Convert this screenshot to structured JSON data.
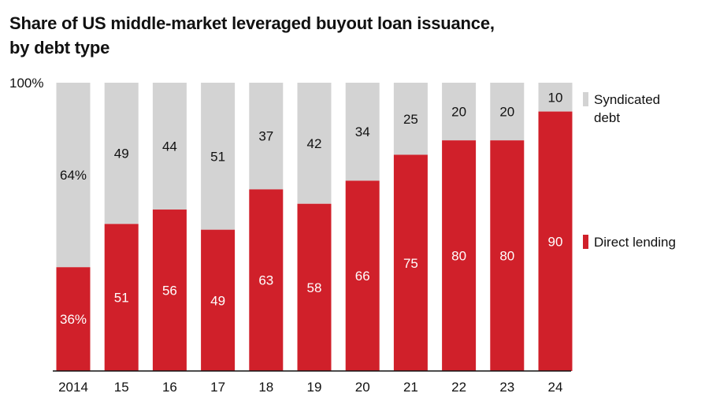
{
  "title_line1": "Share of US middle-market leveraged buyout loan issuance,",
  "title_line2": "by debt type",
  "colors": {
    "direct": "#d0202a",
    "syndicated": "#d3d3d3",
    "axis": "#111111"
  },
  "chart_data": {
    "type": "bar",
    "stacked": true,
    "categories": [
      "2014",
      "15",
      "16",
      "17",
      "18",
      "19",
      "20",
      "21",
      "22",
      "23",
      "24"
    ],
    "series": [
      {
        "name": "Direct lending",
        "values": [
          36,
          51,
          56,
          49,
          63,
          58,
          66,
          75,
          80,
          80,
          90
        ],
        "labels": [
          "36%",
          "51",
          "56",
          "49",
          "63",
          "58",
          "66",
          "75",
          "80",
          "80",
          "90"
        ]
      },
      {
        "name": "Syndicated debt",
        "values": [
          64,
          49,
          44,
          51,
          37,
          42,
          34,
          25,
          20,
          20,
          10
        ],
        "labels": [
          "64%",
          "49",
          "44",
          "51",
          "37",
          "42",
          "34",
          "25",
          "20",
          "20",
          "10"
        ]
      }
    ],
    "title": "Share of US middle-market leveraged buyout loan issuance, by debt type",
    "y_tick_label": "100%",
    "ylim": [
      0,
      100
    ],
    "legend": {
      "position": "right",
      "syndicated_line1": "Syndicated",
      "syndicated_line2": "debt",
      "direct": "Direct lending"
    },
    "grid": false
  }
}
